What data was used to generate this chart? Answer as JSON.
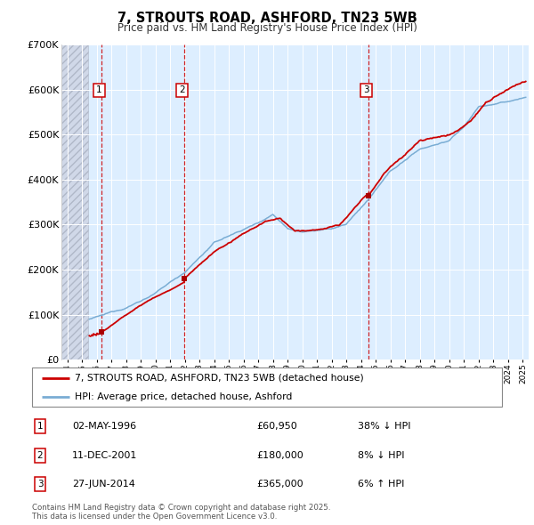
{
  "title1": "7, STROUTS ROAD, ASHFORD, TN23 5WB",
  "title2": "Price paid vs. HM Land Registry's House Price Index (HPI)",
  "ylim": [
    0,
    700000
  ],
  "yticks": [
    0,
    100000,
    200000,
    300000,
    400000,
    500000,
    600000,
    700000
  ],
  "ytick_labels": [
    "£0",
    "£100K",
    "£200K",
    "£300K",
    "£400K",
    "£500K",
    "£600K",
    "£700K"
  ],
  "xlim_start": 1993.6,
  "xlim_end": 2025.4,
  "hatch_end": 1995.42,
  "sale_dates": [
    1996.33,
    2001.95,
    2014.49
  ],
  "sale_prices": [
    60950,
    180000,
    365000
  ],
  "sale_labels": [
    "1",
    "2",
    "3"
  ],
  "legend_line1": "7, STROUTS ROAD, ASHFORD, TN23 5WB (detached house)",
  "legend_line2": "HPI: Average price, detached house, Ashford",
  "table_rows": [
    [
      "1",
      "02-MAY-1996",
      "£60,950",
      "38% ↓ HPI"
    ],
    [
      "2",
      "11-DEC-2001",
      "£180,000",
      "8% ↓ HPI"
    ],
    [
      "3",
      "27-JUN-2014",
      "£365,000",
      "6% ↑ HPI"
    ]
  ],
  "footnote": "Contains HM Land Registry data © Crown copyright and database right 2025.\nThis data is licensed under the Open Government Licence v3.0.",
  "line_color_red": "#cc0000",
  "line_color_blue": "#7aadd4",
  "bg_color": "#ddeeff",
  "sale_marker_color": "#aa0000"
}
